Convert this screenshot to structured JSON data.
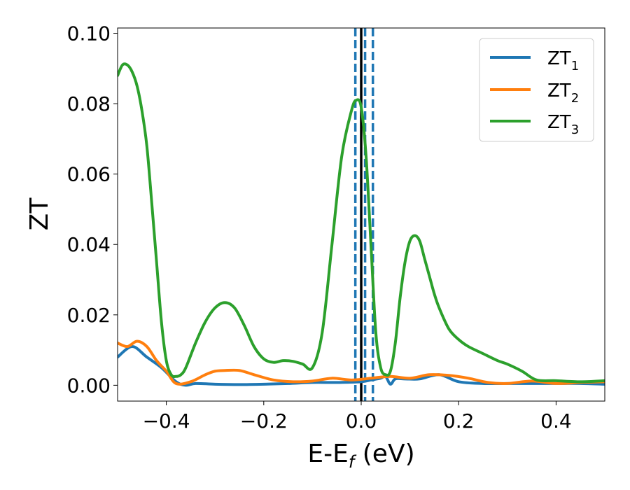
{
  "chart_data": {
    "type": "line",
    "xlabel": "E-E",
    "xlabel_sub": "f",
    "xlabel_unit": " (eV)",
    "ylabel": "ZT",
    "xlim": [
      -0.5,
      0.5
    ],
    "ylim": [
      -0.0045,
      0.1015
    ],
    "x_ticks": [
      -0.4,
      -0.2,
      0.0,
      0.2,
      0.4
    ],
    "x_tick_labels": [
      "−0.4",
      "−0.2",
      "0.0",
      "0.2",
      "0.4"
    ],
    "y_ticks": [
      0.0,
      0.02,
      0.04,
      0.06,
      0.08,
      0.1
    ],
    "y_tick_labels": [
      "0.00",
      "0.02",
      "0.04",
      "0.06",
      "0.08",
      "0.10"
    ],
    "grid": false,
    "legend_position": "top-right",
    "vlines": [
      {
        "x": 0.0,
        "style": "solid",
        "color": "#000000"
      },
      {
        "x": -0.012,
        "style": "dashed",
        "color": "#1f77b4"
      },
      {
        "x": 0.008,
        "style": "dashed",
        "color": "#1f77b4"
      },
      {
        "x": 0.024,
        "style": "dashed",
        "color": "#1f77b4"
      }
    ],
    "series": [
      {
        "name": "ZT",
        "name_sub": "1",
        "color": "#1f77b4",
        "x": [
          -0.5,
          -0.47,
          -0.44,
          -0.41,
          -0.38,
          -0.36,
          -0.34,
          -0.3,
          -0.25,
          -0.2,
          -0.15,
          -0.1,
          -0.05,
          0.0,
          0.02,
          0.04,
          0.05,
          0.06,
          0.07,
          0.09,
          0.12,
          0.16,
          0.2,
          0.25,
          0.3,
          0.35,
          0.4,
          0.45,
          0.5
        ],
        "y": [
          0.008,
          0.011,
          0.008,
          0.005,
          0.001,
          0.0,
          0.0005,
          0.0003,
          0.0002,
          0.0003,
          0.0005,
          0.0008,
          0.0008,
          0.001,
          0.0015,
          0.002,
          0.0025,
          0.0003,
          0.0018,
          0.0018,
          0.0018,
          0.003,
          0.001,
          0.0005,
          0.0005,
          0.0005,
          0.0005,
          0.0005,
          0.0003
        ]
      },
      {
        "name": "ZT",
        "name_sub": "2",
        "color": "#ff7f0e",
        "x": [
          -0.5,
          -0.48,
          -0.46,
          -0.44,
          -0.42,
          -0.4,
          -0.38,
          -0.35,
          -0.32,
          -0.3,
          -0.28,
          -0.25,
          -0.22,
          -0.18,
          -0.14,
          -0.1,
          -0.06,
          -0.02,
          0.02,
          0.06,
          0.1,
          0.14,
          0.18,
          0.22,
          0.26,
          0.3,
          0.35,
          0.4,
          0.45,
          0.5
        ],
        "y": [
          0.012,
          0.011,
          0.0125,
          0.011,
          0.007,
          0.004,
          0.0005,
          0.001,
          0.003,
          0.004,
          0.0042,
          0.0042,
          0.003,
          0.0015,
          0.001,
          0.0012,
          0.002,
          0.0015,
          0.002,
          0.0025,
          0.002,
          0.003,
          0.0028,
          0.002,
          0.0008,
          0.0005,
          0.0012,
          0.0005,
          0.0008,
          0.001
        ]
      },
      {
        "name": "ZT",
        "name_sub": "3",
        "color": "#2ca02c",
        "x": [
          -0.5,
          -0.49,
          -0.48,
          -0.47,
          -0.46,
          -0.45,
          -0.44,
          -0.43,
          -0.42,
          -0.41,
          -0.4,
          -0.39,
          -0.38,
          -0.37,
          -0.36,
          -0.34,
          -0.32,
          -0.3,
          -0.28,
          -0.26,
          -0.24,
          -0.22,
          -0.2,
          -0.18,
          -0.16,
          -0.14,
          -0.12,
          -0.1,
          -0.08,
          -0.06,
          -0.04,
          -0.02,
          -0.01,
          0.0,
          0.01,
          0.02,
          0.03,
          0.04,
          0.05,
          0.06,
          0.07,
          0.08,
          0.09,
          0.1,
          0.11,
          0.12,
          0.13,
          0.14,
          0.15,
          0.16,
          0.18,
          0.2,
          0.22,
          0.25,
          0.28,
          0.3,
          0.33,
          0.36,
          0.4,
          0.45,
          0.5
        ],
        "y": [
          0.088,
          0.091,
          0.091,
          0.089,
          0.085,
          0.078,
          0.068,
          0.052,
          0.035,
          0.018,
          0.007,
          0.003,
          0.0025,
          0.003,
          0.005,
          0.012,
          0.018,
          0.022,
          0.0235,
          0.022,
          0.017,
          0.011,
          0.0075,
          0.0065,
          0.007,
          0.0068,
          0.006,
          0.005,
          0.015,
          0.04,
          0.065,
          0.078,
          0.081,
          0.079,
          0.065,
          0.04,
          0.015,
          0.005,
          0.003,
          0.004,
          0.012,
          0.025,
          0.035,
          0.041,
          0.0425,
          0.041,
          0.036,
          0.031,
          0.026,
          0.022,
          0.016,
          0.013,
          0.011,
          0.009,
          0.007,
          0.006,
          0.004,
          0.0015,
          0.0013,
          0.001,
          0.0013
        ]
      }
    ]
  }
}
